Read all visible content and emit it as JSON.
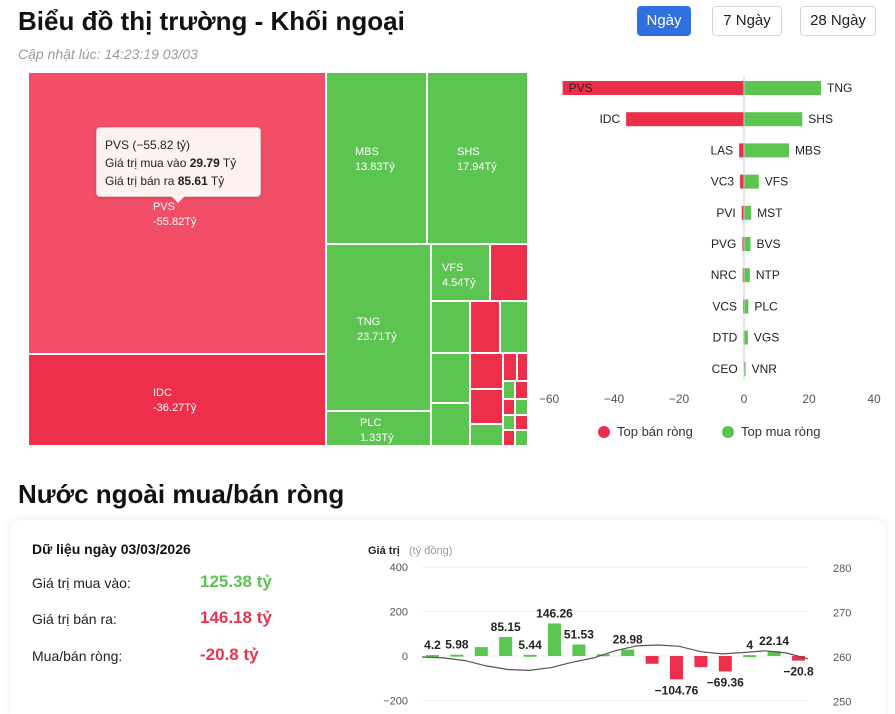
{
  "header": {
    "title": "Biểu đồ thị trường - Khối ngoại",
    "updated": "Cập nhật lúc: 14:23:19 03/03",
    "tabs": [
      {
        "label": "Ngày",
        "active": true
      },
      {
        "label": "7 Ngày",
        "active": false
      },
      {
        "label": "28 Ngày",
        "active": false
      }
    ]
  },
  "colors": {
    "buy": "#5cc450",
    "sell": "#f34e68",
    "sell_dark": "#ed2f4c",
    "accent": "#2f6fe0"
  },
  "treemap": {
    "tiles": [
      {
        "code": "PVS",
        "value": "-55.82Tỷ",
        "side": "sell"
      },
      {
        "code": "IDC",
        "value": "-36.27Tỷ",
        "side": "sell"
      },
      {
        "code": "MBS",
        "value": "13.83Tỷ",
        "side": "buy"
      },
      {
        "code": "SHS",
        "value": "17.94Tỷ",
        "side": "buy"
      },
      {
        "code": "TNG",
        "value": "23.71Tỷ",
        "side": "buy"
      },
      {
        "code": "VFS",
        "value": "4.54Tỷ",
        "side": "buy"
      },
      {
        "code": "PLC",
        "value": "1.33Tỷ",
        "side": "buy"
      }
    ],
    "tooltip": {
      "title": "PVS (−55.82 tỷ)",
      "buy_label": "Giá trị mua vào",
      "buy_value": "29.79",
      "sell_label": "Giá trị bán ra",
      "sell_value": "85.61",
      "unit": "Tỷ"
    }
  },
  "chart_data": [
    {
      "type": "bar",
      "orientation": "horizontal",
      "sell_codes": [
        "PVS",
        "IDC",
        "LAS",
        "VC3",
        "PVI",
        "PVG",
        "NRC",
        "VCS",
        "DTD",
        "CEO"
      ],
      "sell_values": [
        -55.82,
        -36.27,
        -1.5,
        -1.2,
        -0.7,
        -0.5,
        -0.4,
        -0.3,
        -0.2,
        -0.1
      ],
      "buy_codes": [
        "TNG",
        "SHS",
        "MBS",
        "VFS",
        "MST",
        "BVS",
        "NTP",
        "PLC",
        "VGS",
        "VNR"
      ],
      "buy_values": [
        23.71,
        17.94,
        13.83,
        4.54,
        2.2,
        2.0,
        1.8,
        1.33,
        1.2,
        0.5
      ],
      "x_ticks": [
        "−60",
        "−40",
        "−20",
        "0",
        "20",
        "40"
      ],
      "xlim": [
        -62,
        40
      ],
      "legend": [
        {
          "label": "Top bán ròng",
          "color": "#ed2f4c"
        },
        {
          "label": "Top mua ròng",
          "color": "#5cc450"
        }
      ],
      "legend_position": "bottom"
    },
    {
      "type": "bar",
      "ylabel": "Giá trị",
      "ylabel_unit": "(tỷ đồng)",
      "values": [
        4.2,
        5.98,
        40,
        85.15,
        5.44,
        146.26,
        51.53,
        8,
        28.98,
        -35,
        -104.76,
        -50,
        -69.36,
        4,
        22.14,
        -20.8
      ],
      "value_labels": [
        "4.2",
        "5.98",
        "",
        "85.15",
        "5.44",
        "146.26",
        "51.53",
        "",
        "28.98",
        "",
        "−104.76",
        "",
        "−69.36",
        "4",
        "22.14",
        "−20.8"
      ],
      "y_ticks": [
        "400",
        "200",
        "0",
        "−200"
      ],
      "ylim": [
        -200,
        400
      ],
      "y2_ticks": [
        "280",
        "270",
        "260",
        "250"
      ],
      "y2lim": [
        250,
        280
      ],
      "index_line": [
        260,
        259.8,
        259.2,
        258,
        257.2,
        257,
        257.6,
        258.8,
        259.8,
        261.4,
        262.5,
        262.7,
        262.4,
        261.2,
        260.7,
        261,
        261.4,
        260.9,
        259.6
      ]
    }
  ],
  "net": {
    "heading": "Nước ngoài mua/bán ròng",
    "date_label": "Dữ liệu ngày 03/03/2026",
    "buy_label": "Giá trị mua vào:",
    "buy_value": "125.38 tỷ",
    "sell_label": "Giá trị bán ra:",
    "sell_value": "146.18 tỷ",
    "net_label": "Mua/bán ròng:",
    "net_value": "-20.8 tỷ"
  }
}
